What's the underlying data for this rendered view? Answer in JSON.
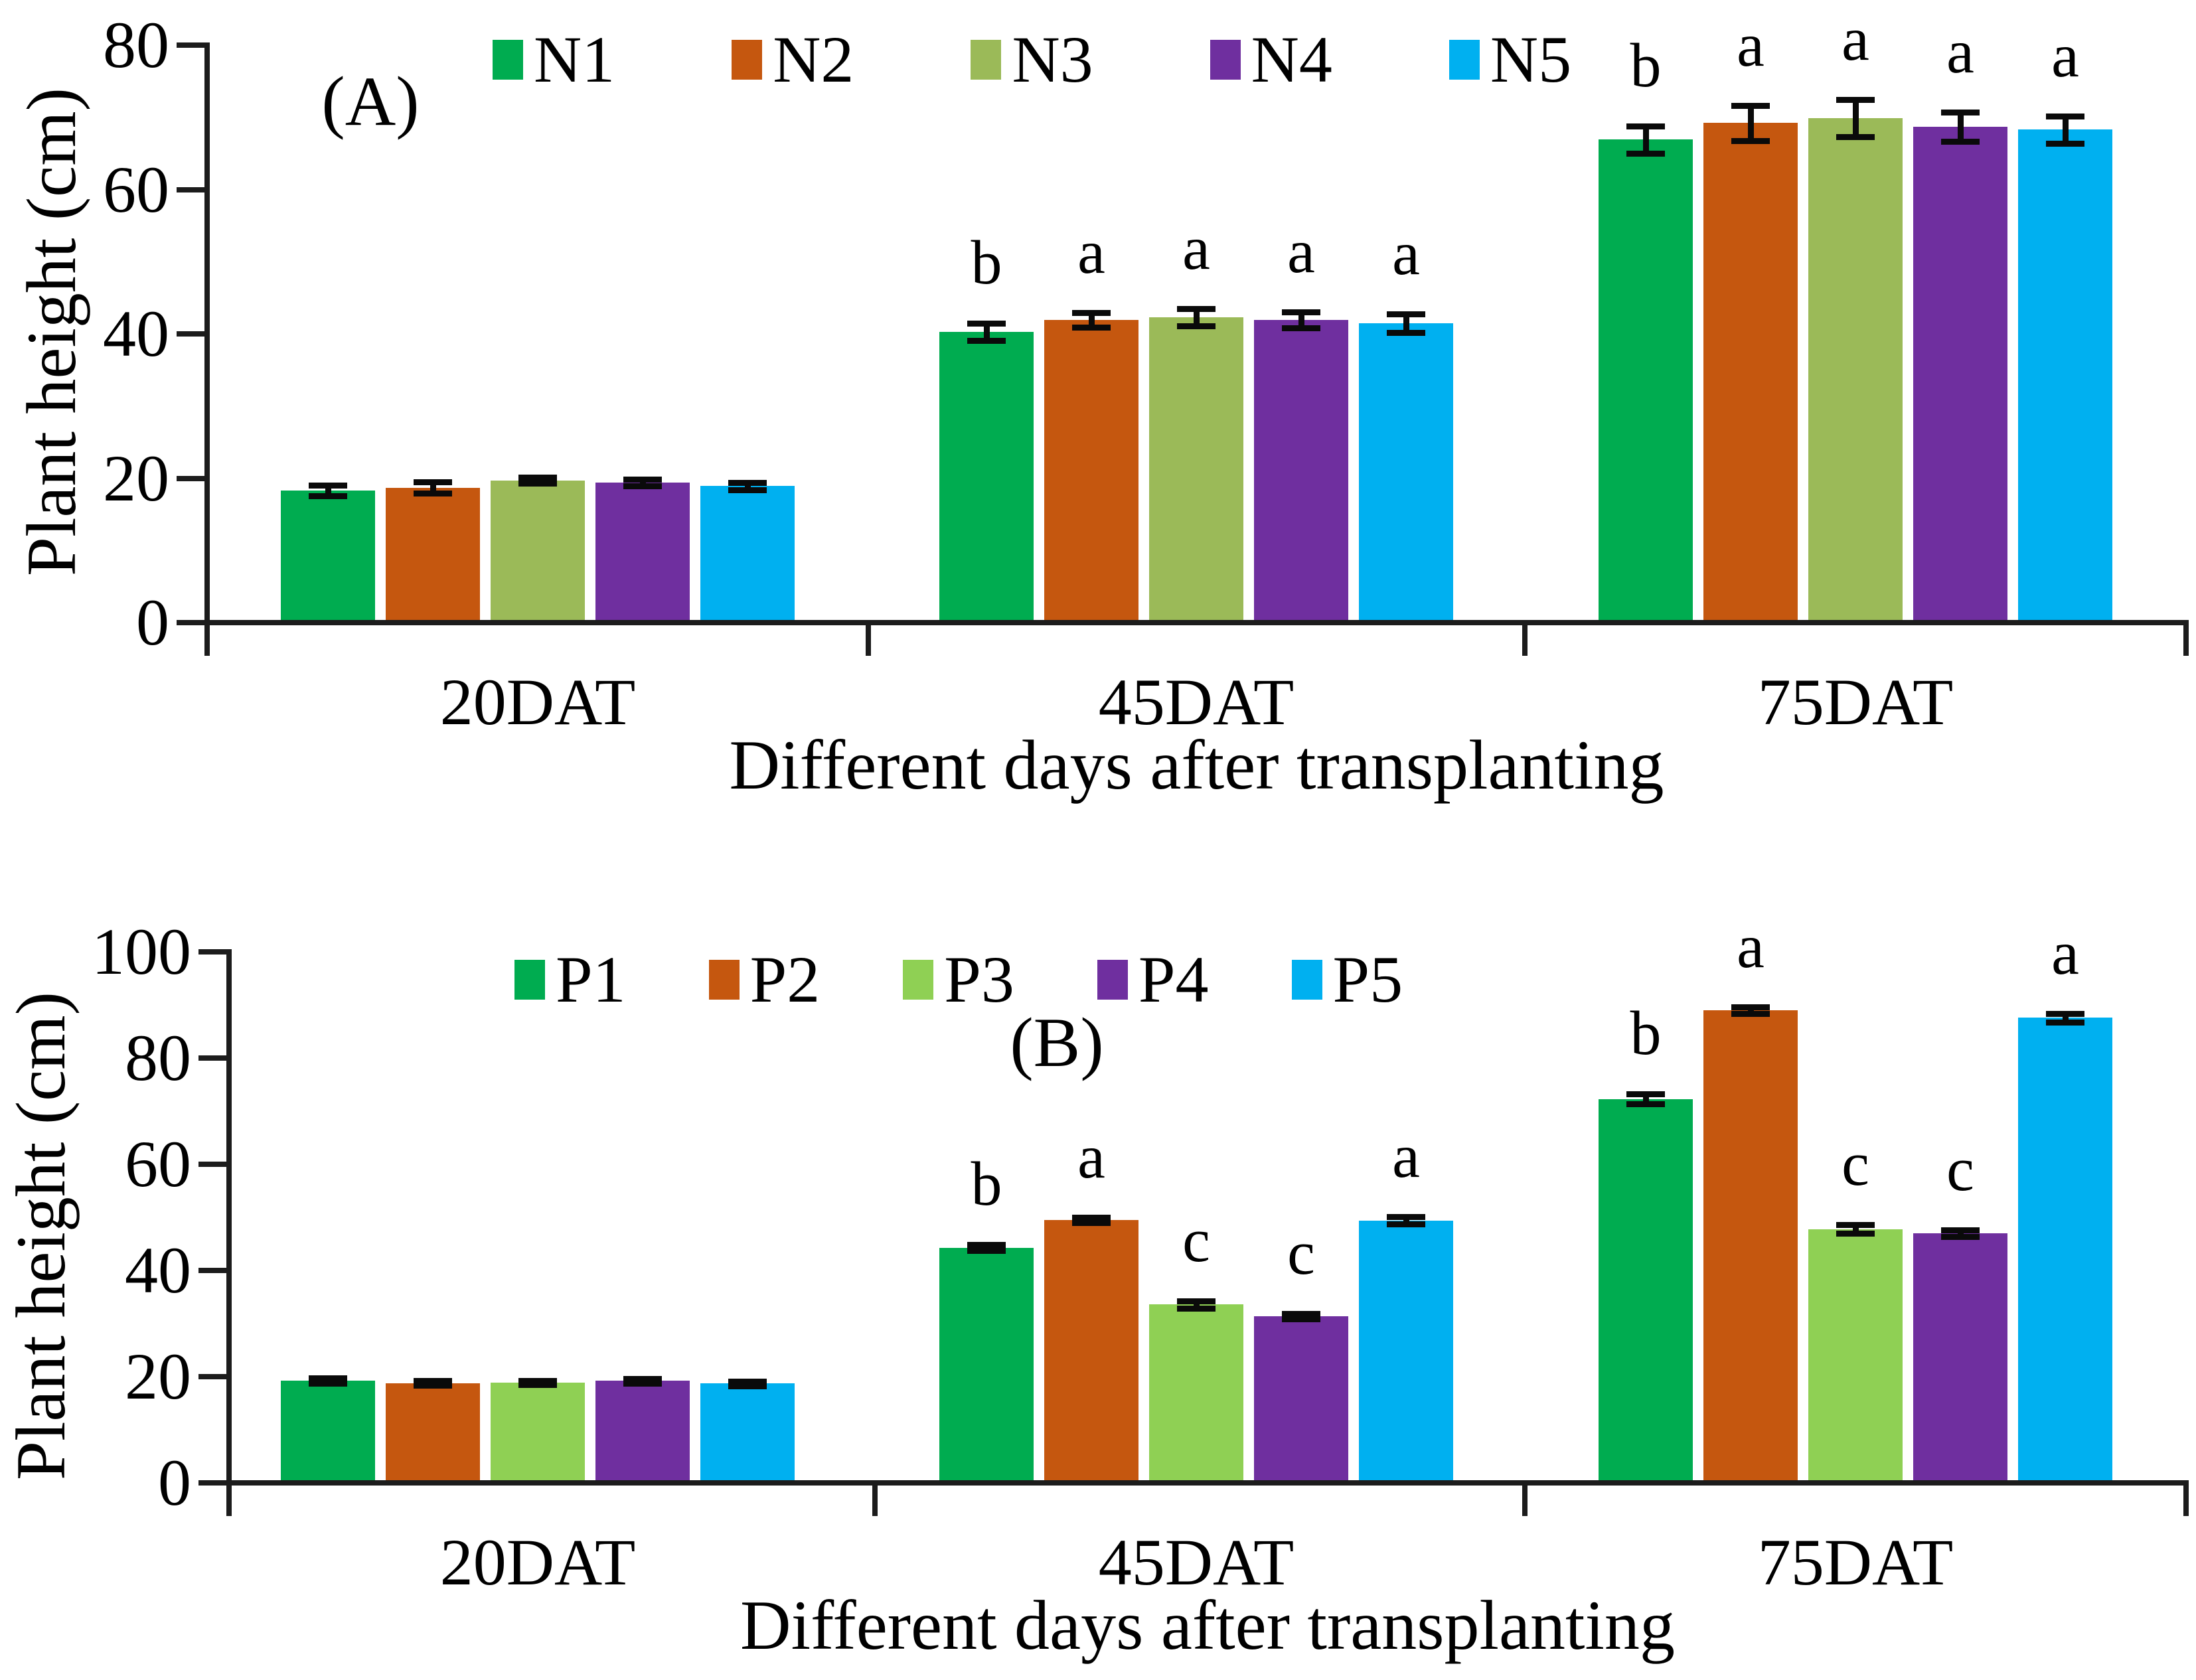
{
  "chart_data": [
    {
      "type": "bar",
      "panel_label": "(A)",
      "categories": [
        "20DAT",
        "45DAT",
        "75DAT"
      ],
      "series": [
        {
          "name": "N1",
          "color": "#00AC50",
          "values": [
            18.3,
            40.3,
            66.9
          ],
          "errors": [
            0.7,
            1.2,
            1.9
          ],
          "sig_letters": [
            "",
            "b",
            "b"
          ]
        },
        {
          "name": "N2",
          "color": "#C5570F",
          "values": [
            18.7,
            41.9,
            69.2
          ],
          "errors": [
            0.8,
            1.0,
            2.4
          ],
          "sig_letters": [
            "",
            "a",
            "a"
          ]
        },
        {
          "name": "N3",
          "color": "#9BBA58",
          "values": [
            19.7,
            42.3,
            69.9
          ],
          "errors": [
            0.4,
            1.2,
            2.6
          ],
          "sig_letters": [
            "",
            "a",
            "a"
          ]
        },
        {
          "name": "N4",
          "color": "#6F2F9F",
          "values": [
            19.4,
            41.9,
            68.7
          ],
          "errors": [
            0.5,
            1.1,
            2.0
          ],
          "sig_letters": [
            "",
            "a",
            "a"
          ]
        },
        {
          "name": "N5",
          "color": "#00B0F0",
          "values": [
            18.9,
            41.5,
            68.3
          ],
          "errors": [
            0.5,
            1.3,
            1.9
          ],
          "sig_letters": [
            "",
            "a",
            "a"
          ]
        }
      ],
      "xlabel": "Different days after transplanting",
      "ylabel": "Plant height (cm)",
      "ylim": [
        0,
        80
      ],
      "yticks": [
        0,
        20,
        40,
        60,
        80
      ],
      "legend_position": "top",
      "grid": false
    },
    {
      "type": "bar",
      "panel_label": "(B)",
      "categories": [
        "20DAT",
        "45DAT",
        "75DAT"
      ],
      "series": [
        {
          "name": "P1",
          "color": "#00AC50",
          "values": [
            19.3,
            44.3,
            72.3
          ],
          "errors": [
            0.5,
            0.6,
            0.9
          ],
          "sig_letters": [
            "",
            "b",
            "b"
          ]
        },
        {
          "name": "P2",
          "color": "#C5570F",
          "values": [
            18.8,
            49.5,
            89.0
          ],
          "errors": [
            0.4,
            0.5,
            0.6
          ],
          "sig_letters": [
            "",
            "a",
            "a"
          ]
        },
        {
          "name": "P3",
          "color": "#8FD054",
          "values": [
            18.9,
            33.6,
            47.8
          ],
          "errors": [
            0.4,
            0.7,
            0.8
          ],
          "sig_letters": [
            "",
            "c",
            "c"
          ]
        },
        {
          "name": "P4",
          "color": "#6F2F9F",
          "values": [
            19.2,
            31.4,
            47.0
          ],
          "errors": [
            0.4,
            0.5,
            0.6
          ],
          "sig_letters": [
            "",
            "c",
            "c"
          ]
        },
        {
          "name": "P5",
          "color": "#00B0F0",
          "values": [
            18.7,
            49.4,
            87.6
          ],
          "errors": [
            0.4,
            0.7,
            0.8
          ],
          "sig_letters": [
            "",
            "a",
            "a"
          ]
        }
      ],
      "xlabel": "Different days after transplanting",
      "ylabel": "Plant height (cm)",
      "ylim": [
        0,
        100
      ],
      "yticks": [
        0,
        20,
        40,
        60,
        80,
        100
      ],
      "legend_position": "top",
      "grid": false
    }
  ]
}
